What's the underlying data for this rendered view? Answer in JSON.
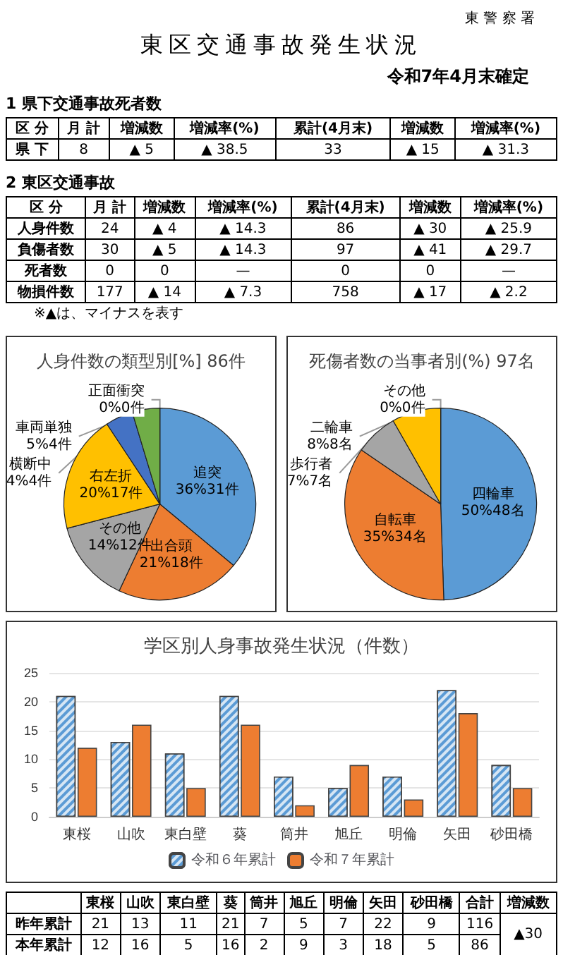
{
  "chart_data": [
    {
      "type": "other",
      "title": "東区交通事故発生状況",
      "annotations": [
        "東 警 察 署",
        "令和7年4月末確定"
      ]
    },
    {
      "type": "other",
      "title": "1 県下交通事故死者数",
      "categories": [
        "区 分",
        "月 計",
        "増減数",
        "増減率(%)",
        "累計(4月末)",
        "増減数",
        "増減率(%)"
      ],
      "y_categories": [
        "県 下"
      ],
      "cell_labels": [
        [
          "8",
          "▲ 5",
          "▲ 38.5",
          "33",
          "▲ 15",
          "▲ 31.3"
        ]
      ]
    },
    {
      "type": "other",
      "title": "2 東区交通事故",
      "categories": [
        "区 分",
        "月 計",
        "増減数",
        "増減率(%)",
        "累計(4月末)",
        "増減数",
        "増減率(%)"
      ],
      "y_categories": [
        "人身件数",
        "負傷者数",
        "死者数",
        "物損件数"
      ],
      "cell_labels": [
        [
          "24",
          "▲ 4",
          "▲ 14.3",
          "86",
          "▲ 30",
          "▲ 25.9"
        ],
        [
          "30",
          "▲ 5",
          "▲ 14.3",
          "97",
          "▲ 41",
          "▲ 29.7"
        ],
        [
          "0",
          "0",
          "—",
          "0",
          "0",
          "—"
        ],
        [
          "177",
          "▲ 14",
          "▲ 7.3",
          "758",
          "▲ 17",
          "▲ 2.2"
        ]
      ],
      "annotations": [
        "※▲は、マイナスを表す"
      ]
    },
    {
      "type": "pie",
      "title": "人身件数の類型別[%] 86件",
      "categories": [
        "追突",
        "出合頭",
        "その他",
        "右左折",
        "横断中",
        "車両単独",
        "正面衝突"
      ],
      "values": [
        31,
        18,
        12,
        17,
        4,
        4,
        0
      ],
      "value_labels": [
        "36%31件",
        "21%18件",
        "14%12件",
        "20%17件",
        "4%4件",
        "5%4件",
        "0%0件"
      ],
      "colors": [
        "#5b9bd5",
        "#ed7d31",
        "#a5a5a5",
        "#ffc000",
        "#4472c4",
        "#70ad47",
        "#264478"
      ],
      "legend": false
    },
    {
      "type": "pie",
      "title": "死傷者数の当事者別(%) 97名",
      "categories": [
        "四輪車",
        "自転車",
        "歩行者",
        "二輪車",
        "その他"
      ],
      "values": [
        48,
        34,
        7,
        8,
        0
      ],
      "value_labels": [
        "50%48名",
        "35%34名",
        "7%7名",
        "8%8名",
        "0%0件"
      ],
      "colors": [
        "#5b9bd5",
        "#ed7d31",
        "#a5a5a5",
        "#ffc000",
        "#4472c4"
      ],
      "legend": false
    },
    {
      "type": "bar",
      "title": "学区別人身事故発生状況（件数）",
      "categories": [
        "東桜",
        "山吹",
        "東白壁",
        "葵",
        "筒井",
        "旭丘",
        "明倫",
        "矢田",
        "砂田橋"
      ],
      "series": [
        {
          "name": "令和６年累計",
          "color": "#5b9bd5",
          "values": [
            21,
            13,
            11,
            21,
            7,
            5,
            7,
            22,
            9
          ]
        },
        {
          "name": "令和７年累計",
          "color": "#ed7d31",
          "values": [
            12,
            16,
            5,
            16,
            2,
            9,
            3,
            18,
            5
          ]
        }
      ],
      "ylim": [
        0,
        25
      ],
      "yticks": [
        0,
        5,
        10,
        15,
        20,
        25
      ],
      "grid": "y",
      "legend": "bottom"
    },
    {
      "type": "other",
      "categories": [
        null,
        "東桜",
        "山吹",
        "東白壁",
        "葵",
        "筒井",
        "旭丘",
        "明倫",
        "矢田",
        "砂田橋",
        "合計",
        "増減数"
      ],
      "y_categories": [
        "昨年累計",
        "本年累計"
      ],
      "cell_labels": [
        [
          "21",
          "13",
          "11",
          "21",
          "7",
          "5",
          "7",
          "22",
          "9",
          "116",
          "▲30"
        ],
        [
          "12",
          "16",
          "5",
          "16",
          "2",
          "9",
          "3",
          "18",
          "5",
          "86",
          null
        ]
      ]
    }
  ]
}
